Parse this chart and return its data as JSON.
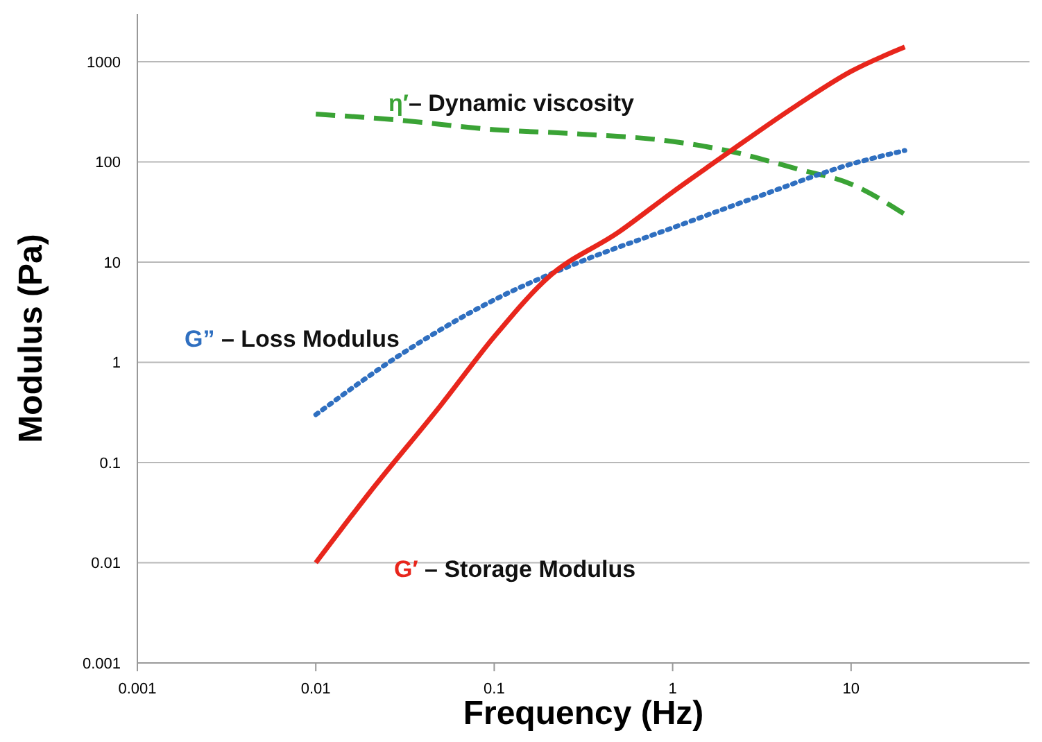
{
  "chart_data": {
    "type": "line",
    "xlabel": "Frequency (Hz)",
    "ylabel": "Modulus (Pa)",
    "log": "xy",
    "grid": "y",
    "xlim": [
      0.001,
      100
    ],
    "xticks": [
      0.001,
      0.01,
      0.1,
      1,
      10
    ],
    "ylim": [
      0.001,
      3000
    ],
    "yticks": [
      0.001,
      0.01,
      0.1,
      1,
      10,
      100,
      1000
    ],
    "series": [
      {
        "name": "η′– Dynamic viscosity",
        "color": "#3aa335",
        "line_style": "dashed",
        "x": [
          0.01,
          0.03,
          0.1,
          0.3,
          1,
          2,
          5,
          10,
          20
        ],
        "values": [
          300,
          260,
          210,
          190,
          160,
          130,
          85,
          60,
          30
        ]
      },
      {
        "name": "G” – Loss Modulus",
        "color": "#2f6fc0",
        "line_style": "dotted",
        "x": [
          0.01,
          0.03,
          0.1,
          0.3,
          1,
          3,
          10,
          20
        ],
        "values": [
          0.3,
          1.2,
          4.2,
          10,
          22,
          45,
          95,
          130
        ]
      },
      {
        "name": "G′ – Storage Modulus",
        "color": "#e8261c",
        "line_style": "solid",
        "x": [
          0.01,
          0.02,
          0.05,
          0.1,
          0.2,
          0.5,
          1,
          2,
          5,
          10,
          20
        ],
        "values": [
          0.01,
          0.05,
          0.37,
          1.8,
          7,
          20,
          50,
          120,
          370,
          800,
          1400
        ]
      }
    ]
  }
}
